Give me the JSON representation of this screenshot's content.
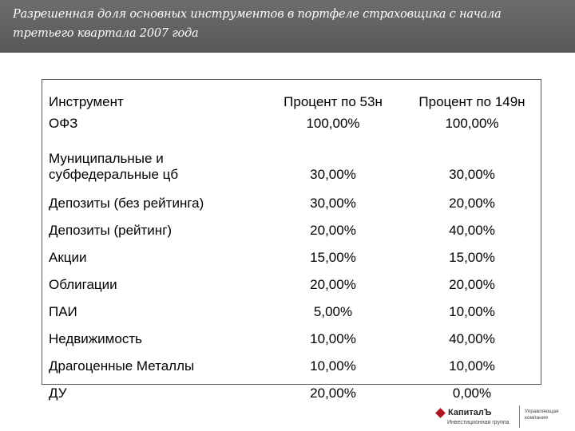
{
  "slide": {
    "title": "Разрешенная доля основных инструментов в портфеле страховщика с начала третьего квартала 2007 года"
  },
  "table": {
    "headers": [
      "Инструмент",
      "Процент по 53н",
      "Процент по 149н"
    ],
    "rows": [
      {
        "name": "ОФЗ",
        "v53": "100,00%",
        "v149": "100,00%"
      },
      {
        "name": "Муниципальные и субфедеральные цб",
        "v53": "30,00%",
        "v149": "30,00%"
      },
      {
        "name": "Депозиты (без рейтинга)",
        "v53": "30,00%",
        "v149": "20,00%"
      },
      {
        "name": "Депозиты (рейтинг)",
        "v53": "20,00%",
        "v149": "40,00%"
      },
      {
        "name": "Акции",
        "v53": "15,00%",
        "v149": "15,00%"
      },
      {
        "name": "Облигации",
        "v53": "20,00%",
        "v149": "20,00%"
      },
      {
        "name": "ПАИ",
        "v53": "5,00%",
        "v149": "10,00%"
      },
      {
        "name": "Недвижимость",
        "v53": "10,00%",
        "v149": "40,00%"
      },
      {
        "name": "Драгоценные Металлы",
        "v53": "10,00%",
        "v149": "10,00%"
      },
      {
        "name": "ДУ",
        "v53": "20,00%",
        "v149": "0,00%"
      }
    ]
  },
  "footer": {
    "logo_text": "КапиталЪ",
    "logo_subtitle": "Инвестиционная группа",
    "right_line1": "Управляющая",
    "right_line2": "компания"
  },
  "colors": {
    "title_bar": "#626262",
    "logo_mark": "#b0141c"
  }
}
